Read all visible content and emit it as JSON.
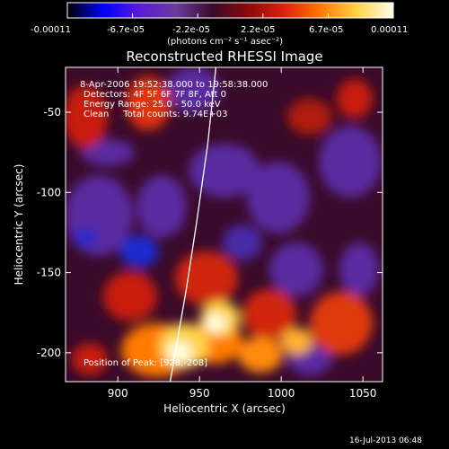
{
  "colorbar": {
    "ticks": [
      "-0.00011",
      "-6.7e-05",
      "-2.2e-05",
      "2.2e-05",
      "6.7e-05",
      "0.00011"
    ],
    "units": "(photons cm⁻² s⁻¹ asec⁻²)",
    "gradient": [
      "#000000",
      "#0000ff",
      "#5a1bd6",
      "#6a3d9a",
      "#3a0a2a",
      "#8a0a0a",
      "#e02010",
      "#ff7a00",
      "#ffd24a",
      "#ffffe8"
    ]
  },
  "chart_data": {
    "type": "heatmap",
    "title": "Reconstructed RHESSI Image",
    "xlabel": "Heliocentric X (arcsec)",
    "ylabel": "Heliocentric Y (arcsec)",
    "xlim": [
      868,
      1062
    ],
    "ylim": [
      -218,
      -22
    ],
    "x_ticks": [
      900,
      950,
      1000,
      1050
    ],
    "y_ticks": [
      -50,
      -100,
      -150,
      -200
    ],
    "value_range": [
      -0.00011,
      0.00011
    ],
    "limb_curve": [
      [
        960,
        -22
      ],
      [
        955,
        -70
      ],
      [
        948,
        -120
      ],
      [
        942,
        -160
      ],
      [
        936,
        -195
      ],
      [
        932,
        -218
      ]
    ],
    "annotations": [
      "8-Apr-2006 19:52:38.000 to 19:58:38.000",
      "Detectors: 4F 5F 6F 7F 8F, Att 0",
      "Energy Range: 25.0 - 50.0 keV",
      "Clean     Total counts: 9.74E+03"
    ],
    "footer_note": "Position of Peak: [928,-208]"
  },
  "timestamp": "16-Jul-2013 06:48"
}
